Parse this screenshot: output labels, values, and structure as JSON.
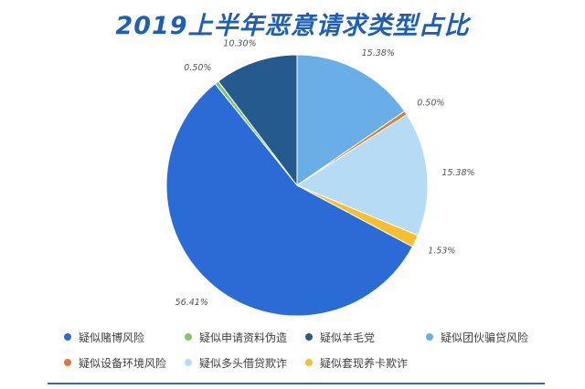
{
  "chart_data": {
    "type": "pie",
    "title": "2019上半年恶意请求类型占比",
    "slices": [
      {
        "label": "疑似团伙骗贷风险",
        "value": 15.38,
        "display": "15.38%",
        "color": "#6aaee8"
      },
      {
        "label": "疑似设备环境风险",
        "value": 0.5,
        "display": "0.50%",
        "color": "#e0783a"
      },
      {
        "label": "疑似多头借贷欺诈",
        "value": 15.38,
        "display": "15.38%",
        "color": "#b6dcf5"
      },
      {
        "label": "疑似套现养卡欺诈",
        "value": 1.53,
        "display": "1.53%",
        "color": "#f7be2e"
      },
      {
        "label": "疑似赌博风险",
        "value": 56.41,
        "display": "56.41%",
        "color": "#2a6bd6"
      },
      {
        "label": "疑似申请资料伪造",
        "value": 0.5,
        "display": "0.50%",
        "color": "#7ec86b"
      },
      {
        "label": "疑似羊毛党",
        "value": 10.3,
        "display": "10.30%",
        "color": "#255a8e"
      }
    ],
    "legend": {
      "placement": "bottom",
      "rows": [
        [
          "疑似赌博风险",
          "疑似申请资料伪造",
          "疑似羊毛党",
          "疑似团伙骗贷风险"
        ],
        [
          "疑似设备环境风险",
          "疑似多头借贷欺诈",
          "疑似套现养卡欺诈"
        ]
      ]
    }
  }
}
